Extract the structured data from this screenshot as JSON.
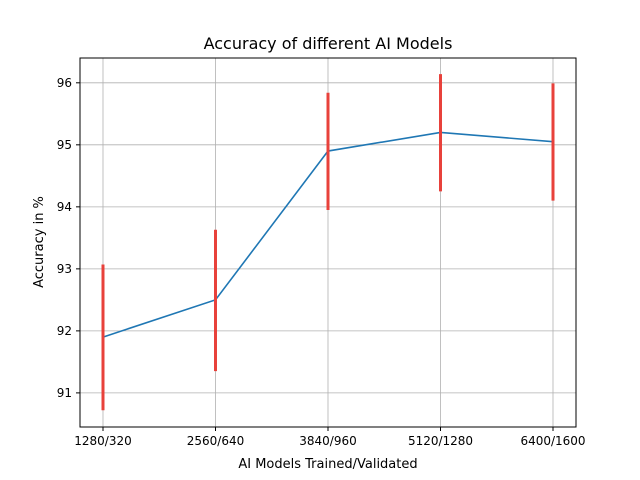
{
  "chart_data": {
    "type": "line",
    "title": "Accuracy of different AI Models",
    "xlabel": "AI Models Trained/Validated",
    "ylabel": "Accuracy in %",
    "categories": [
      "1280/320",
      "2560/640",
      "3840/960",
      "5120/1280",
      "6400/1600"
    ],
    "series": [
      {
        "values": [
          91.9,
          92.5,
          94.9,
          95.2,
          95.05
        ],
        "error_low": [
          90.72,
          91.35,
          93.95,
          94.25,
          94.1
        ],
        "error_high": [
          93.07,
          93.63,
          95.84,
          96.14,
          95.99
        ],
        "color": "#1f77b4",
        "error_color": "#e8413b"
      }
    ],
    "ylim": [
      90.45,
      96.4
    ],
    "yticks": [
      "91",
      "92",
      "93",
      "94",
      "95",
      "96"
    ],
    "grid": true,
    "legend": "none"
  }
}
